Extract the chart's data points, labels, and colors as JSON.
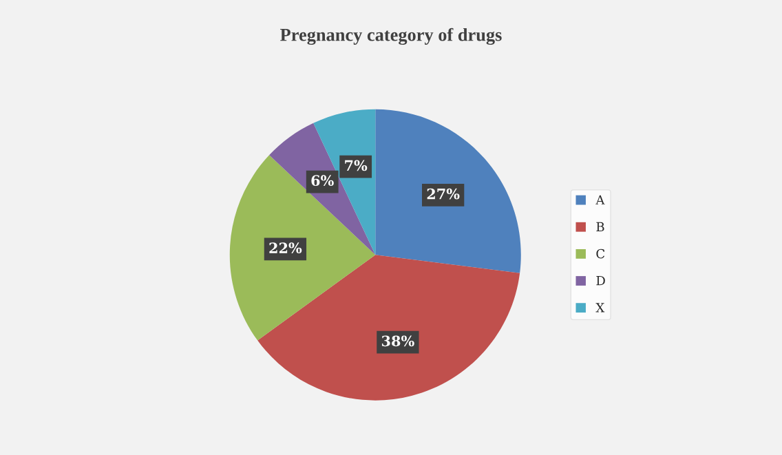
{
  "chart_data": {
    "type": "pie",
    "title": "Pregnancy category of drugs",
    "categories": [
      "A",
      "B",
      "C",
      "D",
      "X"
    ],
    "values": [
      27,
      38,
      22,
      6,
      7
    ],
    "colors": [
      "#4f81bd",
      "#c0504d",
      "#9bbb59",
      "#8064a2",
      "#4bacc6"
    ],
    "value_labels": [
      "27%",
      "38%",
      "22%",
      "6%",
      "7%"
    ],
    "legend": "right"
  }
}
